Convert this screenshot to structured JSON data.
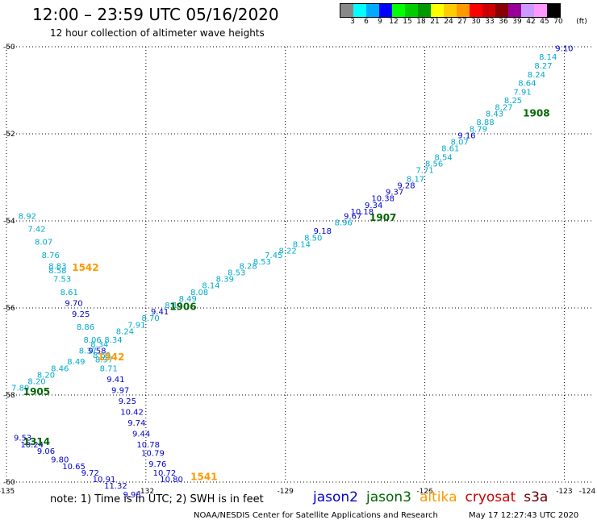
{
  "header": {
    "title": "12:00 – 23:59 UTC 05/16/2020",
    "subtitle": "12 hour collection of altimeter wave heights"
  },
  "color_scale": {
    "unit": "(ft)",
    "entries": [
      {
        "label": "3",
        "color": "#888888"
      },
      {
        "label": "6",
        "color": "#00ffff"
      },
      {
        "label": "9",
        "color": "#00aaff"
      },
      {
        "label": "12",
        "color": "#0000ff"
      },
      {
        "label": "15",
        "color": "#00ff00"
      },
      {
        "label": "18",
        "color": "#00cc00"
      },
      {
        "label": "21",
        "color": "#009900"
      },
      {
        "label": "24",
        "color": "#ffff00"
      },
      {
        "label": "27",
        "color": "#ffcc00"
      },
      {
        "label": "30",
        "color": "#ff9900"
      },
      {
        "label": "33",
        "color": "#ff0000"
      },
      {
        "label": "36",
        "color": "#cc0000"
      },
      {
        "label": "39",
        "color": "#880000"
      },
      {
        "label": "42",
        "color": "#990099"
      },
      {
        "label": "45",
        "color": "#cc99ff"
      },
      {
        "label": "70",
        "color": "#ff99ff"
      },
      {
        "label": "",
        "color": "#000000"
      }
    ]
  },
  "map": {
    "lon_range": [
      -135,
      -124
    ],
    "lat_range": [
      -60,
      -50
    ],
    "lon_ticks": [
      {
        "value": -135,
        "label": "-135"
      },
      {
        "value": -132,
        "label": "-132"
      },
      {
        "value": -129,
        "label": "-129"
      },
      {
        "value": -126,
        "label": "-126"
      },
      {
        "value": -123,
        "label": "-123"
      },
      {
        "value": -124,
        "label": "-124"
      }
    ],
    "lat_ticks": [
      {
        "value": -50,
        "label": "-50"
      },
      {
        "value": -52,
        "label": "-52"
      },
      {
        "value": -54,
        "label": "-54"
      },
      {
        "value": -56,
        "label": "-56"
      },
      {
        "value": -58,
        "label": "-58"
      },
      {
        "value": -60,
        "label": "-60"
      }
    ],
    "measurements": [
      {
        "lon": -123.0,
        "lat": -50.1,
        "label": "9.10",
        "sat": "jason2"
      },
      {
        "lon": -123.35,
        "lat": -50.3,
        "label": "8.14",
        "sat": "alt6"
      },
      {
        "lon": -123.45,
        "lat": -50.5,
        "label": "8.27",
        "sat": "alt6"
      },
      {
        "lon": -123.6,
        "lat": -50.7,
        "label": "8.24",
        "sat": "alt6"
      },
      {
        "lon": -123.8,
        "lat": -50.9,
        "label": "8.64",
        "sat": "alt6"
      },
      {
        "lon": -123.9,
        "lat": -51.1,
        "label": "7.91",
        "sat": "alt6"
      },
      {
        "lon": -124.1,
        "lat": -51.3,
        "label": "8.25",
        "sat": "alt6"
      },
      {
        "lon": -124.3,
        "lat": -51.45,
        "label": "8.27",
        "sat": "alt6"
      },
      {
        "lon": -124.5,
        "lat": -51.6,
        "label": "8.43",
        "sat": "alt6"
      },
      {
        "lon": -124.7,
        "lat": -51.8,
        "label": "8.88",
        "sat": "alt6"
      },
      {
        "lon": -124.85,
        "lat": -51.95,
        "label": "8.79",
        "sat": "alt6"
      },
      {
        "lon": -125.1,
        "lat": -52.1,
        "label": "9.16",
        "sat": "jason2"
      },
      {
        "lon": -125.25,
        "lat": -52.25,
        "label": "8.07",
        "sat": "alt6"
      },
      {
        "lon": -125.45,
        "lat": -52.4,
        "label": "8.61",
        "sat": "alt6"
      },
      {
        "lon": -125.6,
        "lat": -52.6,
        "label": "8.54",
        "sat": "alt6"
      },
      {
        "lon": -125.8,
        "lat": -52.75,
        "label": "8.56",
        "sat": "alt6"
      },
      {
        "lon": -126.0,
        "lat": -52.9,
        "label": "7.71",
        "sat": "alt6"
      },
      {
        "lon": -126.2,
        "lat": -53.1,
        "label": "8.17",
        "sat": "alt6"
      },
      {
        "lon": -126.4,
        "lat": -53.25,
        "label": "9.28",
        "sat": "jason2"
      },
      {
        "lon": -126.65,
        "lat": -53.4,
        "label": "9.37",
        "sat": "jason2"
      },
      {
        "lon": -126.9,
        "lat": -53.55,
        "label": "10.38",
        "sat": "jason2"
      },
      {
        "lon": -127.1,
        "lat": -53.7,
        "label": "9.34",
        "sat": "jason2"
      },
      {
        "lon": -127.35,
        "lat": -53.85,
        "label": "10.18",
        "sat": "jason2"
      },
      {
        "lon": -127.55,
        "lat": -53.95,
        "label": "9.67",
        "sat": "jason2"
      },
      {
        "lon": -127.75,
        "lat": -54.1,
        "label": "8.96",
        "sat": "alt6"
      },
      {
        "lon": -128.2,
        "lat": -54.3,
        "label": "9.18",
        "sat": "jason2"
      },
      {
        "lon": -128.4,
        "lat": -54.45,
        "label": "8.50",
        "sat": "alt6"
      },
      {
        "lon": -128.65,
        "lat": -54.6,
        "label": "8.14",
        "sat": "alt6"
      },
      {
        "lon": -128.95,
        "lat": -54.75,
        "label": "8.22",
        "sat": "alt6"
      },
      {
        "lon": -129.25,
        "lat": -54.85,
        "label": "7.45",
        "sat": "alt6"
      },
      {
        "lon": -129.5,
        "lat": -55.0,
        "label": "8.53",
        "sat": "alt6"
      },
      {
        "lon": -129.8,
        "lat": -55.1,
        "label": "8.28",
        "sat": "alt6"
      },
      {
        "lon": -130.05,
        "lat": -55.25,
        "label": "8.53",
        "sat": "alt6"
      },
      {
        "lon": -130.3,
        "lat": -55.4,
        "label": "8.39",
        "sat": "alt6"
      },
      {
        "lon": -130.6,
        "lat": -55.55,
        "label": "8.14",
        "sat": "alt6"
      },
      {
        "lon": -130.85,
        "lat": -55.7,
        "label": "8.08",
        "sat": "alt6"
      },
      {
        "lon": -131.1,
        "lat": -55.85,
        "label": "8.49",
        "sat": "alt6"
      },
      {
        "lon": -131.4,
        "lat": -56.0,
        "label": "8.10",
        "sat": "alt6"
      },
      {
        "lon": -131.7,
        "lat": -56.15,
        "label": "9.41",
        "sat": "jason2"
      },
      {
        "lon": -131.9,
        "lat": -56.3,
        "label": "8.70",
        "sat": "alt6"
      },
      {
        "lon": -132.2,
        "lat": -56.45,
        "label": "7.91",
        "sat": "alt6"
      },
      {
        "lon": -132.45,
        "lat": -56.6,
        "label": "8.24",
        "sat": "alt6"
      },
      {
        "lon": -132.7,
        "lat": -56.8,
        "label": "8.34",
        "sat": "alt6"
      },
      {
        "lon": -133.0,
        "lat": -56.9,
        "label": "8.34",
        "sat": "alt6"
      },
      {
        "lon": -133.25,
        "lat": -57.05,
        "label": "8.37",
        "sat": "alt6"
      },
      {
        "lon": -133.5,
        "lat": -57.3,
        "label": "8.49",
        "sat": "alt6"
      },
      {
        "lon": -133.85,
        "lat": -57.45,
        "label": "8.46",
        "sat": "alt6"
      },
      {
        "lon": -134.15,
        "lat": -57.6,
        "label": "8.20",
        "sat": "alt6"
      },
      {
        "lon": -134.35,
        "lat": -57.75,
        "label": "8.20",
        "sat": "alt6"
      },
      {
        "lon": -134.7,
        "lat": -57.9,
        "label": "7.89",
        "sat": "alt6"
      },
      {
        "lon": -134.55,
        "lat": -53.95,
        "label": "8.92",
        "sat": "alt6"
      },
      {
        "lon": -134.35,
        "lat": -54.25,
        "label": "7.42",
        "sat": "alt6"
      },
      {
        "lon": -134.2,
        "lat": -54.55,
        "label": "8.07",
        "sat": "alt6"
      },
      {
        "lon": -134.05,
        "lat": -54.85,
        "label": "8.76",
        "sat": "alt6"
      },
      {
        "lon": -133.9,
        "lat": -55.1,
        "label": "8.83",
        "sat": "alt6"
      },
      {
        "lon": -133.9,
        "lat": -55.2,
        "label": "8.58",
        "sat": "alt6"
      },
      {
        "lon": -133.8,
        "lat": -55.4,
        "label": "7.53",
        "sat": "alt6"
      },
      {
        "lon": -133.65,
        "lat": -55.7,
        "label": "8.61",
        "sat": "alt6"
      },
      {
        "lon": -133.55,
        "lat": -55.95,
        "label": "9.70",
        "sat": "jason2"
      },
      {
        "lon": -133.4,
        "lat": -56.2,
        "label": "9.25",
        "sat": "jason2"
      },
      {
        "lon": -133.3,
        "lat": -56.5,
        "label": "8.86",
        "sat": "alt6"
      },
      {
        "lon": -133.15,
        "lat": -56.8,
        "label": "8.06",
        "sat": "alt6"
      },
      {
        "lon": -133.05,
        "lat": -57.05,
        "label": "9.58",
        "sat": "jason2"
      },
      {
        "lon": -132.95,
        "lat": -57.15,
        "label": "8.69",
        "sat": "alt6"
      },
      {
        "lon": -132.9,
        "lat": -57.25,
        "label": "8.97",
        "sat": "alt6"
      },
      {
        "lon": -132.8,
        "lat": -57.45,
        "label": "8.71",
        "sat": "alt6"
      },
      {
        "lon": -132.65,
        "lat": -57.7,
        "label": "9.41",
        "sat": "jason2"
      },
      {
        "lon": -132.55,
        "lat": -57.95,
        "label": "9.97",
        "sat": "jason2"
      },
      {
        "lon": -132.4,
        "lat": -58.2,
        "label": "9.25",
        "sat": "jason2"
      },
      {
        "lon": -132.3,
        "lat": -58.45,
        "label": "10.42",
        "sat": "jason2"
      },
      {
        "lon": -132.2,
        "lat": -58.7,
        "label": "9.74",
        "sat": "jason2"
      },
      {
        "lon": -132.1,
        "lat": -58.95,
        "label": "9.44",
        "sat": "jason2"
      },
      {
        "lon": -131.95,
        "lat": -59.2,
        "label": "10.78",
        "sat": "jason2"
      },
      {
        "lon": -131.85,
        "lat": -59.4,
        "label": "10.79",
        "sat": "jason2"
      },
      {
        "lon": -131.75,
        "lat": -59.65,
        "label": "9.76",
        "sat": "jason2"
      },
      {
        "lon": -131.6,
        "lat": -59.85,
        "label": "10.72",
        "sat": "jason2"
      },
      {
        "lon": -131.45,
        "lat": -60.0,
        "label": "10.80",
        "sat": "jason2"
      },
      {
        "lon": -134.65,
        "lat": -59.05,
        "label": "9.53",
        "sat": "jason2"
      },
      {
        "lon": -134.45,
        "lat": -59.2,
        "label": "10.24",
        "sat": "jason2"
      },
      {
        "lon": -134.15,
        "lat": -59.35,
        "label": "9.06",
        "sat": "jason2"
      },
      {
        "lon": -133.85,
        "lat": -59.55,
        "label": "9.80",
        "sat": "jason2"
      },
      {
        "lon": -133.55,
        "lat": -59.7,
        "label": "10.65",
        "sat": "jason2"
      },
      {
        "lon": -133.2,
        "lat": -59.85,
        "label": "9.72",
        "sat": "jason2"
      },
      {
        "lon": -132.9,
        "lat": -60.0,
        "label": "10.91",
        "sat": "jason2"
      },
      {
        "lon": -132.65,
        "lat": -60.15,
        "label": "11.32",
        "sat": "jason2"
      },
      {
        "lon": -132.3,
        "lat": -60.35,
        "label": "9.98",
        "sat": "jason2"
      }
    ],
    "time_labels": [
      {
        "lon": -123.6,
        "lat": -51.6,
        "label": "1908",
        "sat": "jason3"
      },
      {
        "lon": -126.9,
        "lat": -54.0,
        "label": "1907",
        "sat": "jason3"
      },
      {
        "lon": -131.2,
        "lat": -56.05,
        "label": "1906",
        "sat": "jason3"
      },
      {
        "lon": -134.35,
        "lat": -58.0,
        "label": "1905",
        "sat": "jason3"
      },
      {
        "lon": -134.35,
        "lat": -59.15,
        "label": "1314",
        "sat": "jason3"
      },
      {
        "lon": -133.3,
        "lat": -55.15,
        "label": "1542",
        "sat": "altika"
      },
      {
        "lon": -132.75,
        "lat": -57.2,
        "label": "1542",
        "sat": "altika"
      },
      {
        "lon": -130.75,
        "lat": -59.95,
        "label": "1541",
        "sat": "altika"
      }
    ]
  },
  "sat_colors": {
    "jason2": "#0000cc",
    "jason3": "#006600",
    "altika": "#ff9900",
    "cryosat": "#cc0000",
    "s3a": "#660000",
    "alt6": "#00aacc"
  },
  "footer": {
    "note": "note: 1) Time is in UTC; 2) SWH is in feet",
    "legend": [
      {
        "label": "jason2",
        "key": "jason2"
      },
      {
        "label": "jason3",
        "key": "jason3"
      },
      {
        "label": "altika",
        "key": "altika"
      },
      {
        "label": "cryosat",
        "key": "cryosat"
      },
      {
        "label": "s3a",
        "key": "s3a"
      }
    ],
    "credit": "NOAA/NESDIS Center for Satellite Applications and Research",
    "timestamp": "May 17 12:27:43 UTC 2020"
  }
}
